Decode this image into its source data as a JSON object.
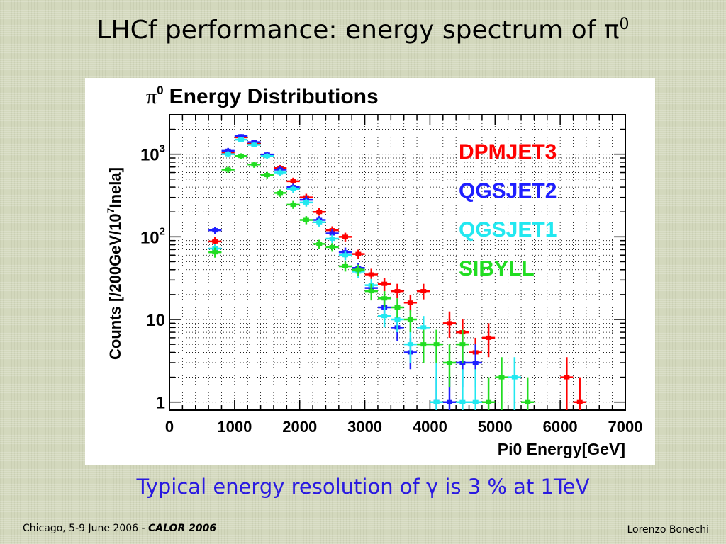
{
  "slide": {
    "title_main": "LHCf performance: energy spectrum of π",
    "title_sup": "0",
    "subtitle": "Typical energy resolution of γ is 3 % at 1TeV",
    "footer_left_text": "Chicago, 5-9 June 2006  -  ",
    "footer_left_conf": "CALOR 2006",
    "footer_right": "Lorenzo Bonechi"
  },
  "chart_data": {
    "type": "scatter",
    "title_symbol": "π",
    "title_sup": "0",
    "title": "Energy Distributions",
    "xlabel": "Pi0 Energy[GeV]",
    "ylabel_parts": [
      "Counts [/200GeV/10",
      "7",
      "Inela]"
    ],
    "xlim": [
      0,
      7000
    ],
    "ylim": [
      0.8,
      3000
    ],
    "yscale": "log",
    "grid": true,
    "legend_position": "top-right",
    "x_ticks": [
      "0",
      "1000",
      "2000",
      "3000",
      "4000",
      "5000",
      "6000",
      "7000"
    ],
    "y_ticks": [
      {
        "value": 1,
        "base": "1",
        "exp": ""
      },
      {
        "value": 10,
        "base": "10",
        "exp": ""
      },
      {
        "value": 100,
        "base": "10",
        "exp": "2"
      },
      {
        "value": 1000,
        "base": "10",
        "exp": "3"
      }
    ],
    "bin_half_width_gev": 100,
    "series": [
      {
        "name": "DPMJET3",
        "color": "#ff0000",
        "points": [
          {
            "x": 700,
            "y": 88,
            "lo": 76,
            "hi": 100
          },
          {
            "x": 900,
            "y": 1050,
            "lo": 960,
            "hi": 1140
          },
          {
            "x": 1100,
            "y": 1600,
            "lo": 1500,
            "hi": 1700
          },
          {
            "x": 1300,
            "y": 1350,
            "lo": 1260,
            "hi": 1440
          },
          {
            "x": 1500,
            "y": 980,
            "lo": 900,
            "hi": 1060
          },
          {
            "x": 1700,
            "y": 680,
            "lo": 620,
            "hi": 740
          },
          {
            "x": 1900,
            "y": 470,
            "lo": 420,
            "hi": 520
          },
          {
            "x": 2100,
            "y": 300,
            "lo": 268,
            "hi": 332
          },
          {
            "x": 2300,
            "y": 200,
            "lo": 180,
            "hi": 222
          },
          {
            "x": 2500,
            "y": 120,
            "lo": 106,
            "hi": 134
          },
          {
            "x": 2700,
            "y": 100,
            "lo": 88,
            "hi": 112
          },
          {
            "x": 2900,
            "y": 62,
            "lo": 54,
            "hi": 70
          },
          {
            "x": 3100,
            "y": 35,
            "lo": 29,
            "hi": 41
          },
          {
            "x": 3300,
            "y": 27,
            "lo": 22,
            "hi": 32
          },
          {
            "x": 3500,
            "y": 22,
            "lo": 18,
            "hi": 27
          },
          {
            "x": 3700,
            "y": 16,
            "lo": 12.5,
            "hi": 20
          },
          {
            "x": 3900,
            "y": 22,
            "lo": 17.5,
            "hi": 27
          },
          {
            "x": 4300,
            "y": 9,
            "lo": 6,
            "hi": 12.5
          },
          {
            "x": 4500,
            "y": 7,
            "lo": 4.5,
            "hi": 10
          },
          {
            "x": 4700,
            "y": 4,
            "lo": 2.5,
            "hi": 6
          },
          {
            "x": 4900,
            "y": 6,
            "lo": 3.5,
            "hi": 9
          },
          {
            "x": 6100,
            "y": 2,
            "lo": 0.8,
            "hi": 3.5
          },
          {
            "x": 6300,
            "y": 1,
            "lo": 0.8,
            "hi": 2
          }
        ]
      },
      {
        "name": "QGSJET2",
        "color": "#1e1eff",
        "points": [
          {
            "x": 700,
            "y": 120,
            "lo": 108,
            "hi": 132
          },
          {
            "x": 900,
            "y": 1100,
            "lo": 1010,
            "hi": 1190
          },
          {
            "x": 1100,
            "y": 1650,
            "lo": 1550,
            "hi": 1750
          },
          {
            "x": 1300,
            "y": 1400,
            "lo": 1310,
            "hi": 1490
          },
          {
            "x": 1500,
            "y": 990,
            "lo": 910,
            "hi": 1070
          },
          {
            "x": 1700,
            "y": 650,
            "lo": 590,
            "hi": 710
          },
          {
            "x": 1900,
            "y": 400,
            "lo": 360,
            "hi": 440
          },
          {
            "x": 2100,
            "y": 280,
            "lo": 250,
            "hi": 310
          },
          {
            "x": 2300,
            "y": 160,
            "lo": 142,
            "hi": 178
          },
          {
            "x": 2500,
            "y": 110,
            "lo": 97,
            "hi": 123
          },
          {
            "x": 2700,
            "y": 65,
            "lo": 56,
            "hi": 74
          },
          {
            "x": 2900,
            "y": 42,
            "lo": 36,
            "hi": 48
          },
          {
            "x": 3100,
            "y": 24,
            "lo": 19,
            "hi": 29
          },
          {
            "x": 3300,
            "y": 14,
            "lo": 10.5,
            "hi": 18
          },
          {
            "x": 3500,
            "y": 8,
            "lo": 5.5,
            "hi": 11
          },
          {
            "x": 3700,
            "y": 4,
            "lo": 2.5,
            "hi": 6
          },
          {
            "x": 4100,
            "y": 1,
            "lo": 0.8,
            "hi": 2
          },
          {
            "x": 4300,
            "y": 1,
            "lo": 0.8,
            "hi": 2
          },
          {
            "x": 4500,
            "y": 3,
            "lo": 1.5,
            "hi": 5
          },
          {
            "x": 4700,
            "y": 3,
            "lo": 1.5,
            "hi": 5
          }
        ]
      },
      {
        "name": "QGSJET1",
        "color": "#22e8f0",
        "points": [
          {
            "x": 700,
            "y": 72,
            "lo": 62,
            "hi": 82
          },
          {
            "x": 900,
            "y": 1000,
            "lo": 915,
            "hi": 1085
          },
          {
            "x": 1100,
            "y": 1500,
            "lo": 1405,
            "hi": 1595
          },
          {
            "x": 1300,
            "y": 1300,
            "lo": 1215,
            "hi": 1385
          },
          {
            "x": 1500,
            "y": 950,
            "lo": 875,
            "hi": 1025
          },
          {
            "x": 1700,
            "y": 600,
            "lo": 545,
            "hi": 655
          },
          {
            "x": 1900,
            "y": 380,
            "lo": 340,
            "hi": 420
          },
          {
            "x": 2100,
            "y": 260,
            "lo": 232,
            "hi": 288
          },
          {
            "x": 2300,
            "y": 150,
            "lo": 133,
            "hi": 167
          },
          {
            "x": 2500,
            "y": 95,
            "lo": 84,
            "hi": 106
          },
          {
            "x": 2700,
            "y": 60,
            "lo": 52,
            "hi": 68
          },
          {
            "x": 2900,
            "y": 38,
            "lo": 32,
            "hi": 44
          },
          {
            "x": 3100,
            "y": 26,
            "lo": 21,
            "hi": 31
          },
          {
            "x": 3300,
            "y": 11,
            "lo": 8,
            "hi": 14
          },
          {
            "x": 3500,
            "y": 10,
            "lo": 7,
            "hi": 13
          },
          {
            "x": 3700,
            "y": 5,
            "lo": 3,
            "hi": 7.5
          },
          {
            "x": 3900,
            "y": 8,
            "lo": 5.5,
            "hi": 11
          },
          {
            "x": 4100,
            "y": 1,
            "lo": 0.8,
            "hi": 5
          },
          {
            "x": 4500,
            "y": 1,
            "lo": 0.8,
            "hi": 2.5
          },
          {
            "x": 4700,
            "y": 1,
            "lo": 0.8,
            "hi": 2.5
          },
          {
            "x": 5300,
            "y": 2,
            "lo": 0.8,
            "hi": 3.5
          }
        ]
      },
      {
        "name": "SIBYLL",
        "color": "#22dd22",
        "points": [
          {
            "x": 700,
            "y": 65,
            "lo": 56,
            "hi": 74
          },
          {
            "x": 900,
            "y": 650,
            "lo": 595,
            "hi": 705
          },
          {
            "x": 1100,
            "y": 950,
            "lo": 875,
            "hi": 1025
          },
          {
            "x": 1300,
            "y": 750,
            "lo": 685,
            "hi": 815
          },
          {
            "x": 1500,
            "y": 560,
            "lo": 510,
            "hi": 610
          },
          {
            "x": 1700,
            "y": 340,
            "lo": 305,
            "hi": 375
          },
          {
            "x": 1900,
            "y": 245,
            "lo": 218,
            "hi": 272
          },
          {
            "x": 2100,
            "y": 160,
            "lo": 142,
            "hi": 178
          },
          {
            "x": 2300,
            "y": 82,
            "lo": 72,
            "hi": 92
          },
          {
            "x": 2500,
            "y": 75,
            "lo": 66,
            "hi": 84
          },
          {
            "x": 2700,
            "y": 44,
            "lo": 38,
            "hi": 50
          },
          {
            "x": 2900,
            "y": 40,
            "lo": 34,
            "hi": 46
          },
          {
            "x": 3100,
            "y": 22,
            "lo": 17,
            "hi": 27
          },
          {
            "x": 3300,
            "y": 18,
            "lo": 14,
            "hi": 22
          },
          {
            "x": 3500,
            "y": 14,
            "lo": 10.5,
            "hi": 18
          },
          {
            "x": 3700,
            "y": 10,
            "lo": 7,
            "hi": 13
          },
          {
            "x": 3900,
            "y": 5,
            "lo": 3,
            "hi": 7.5
          },
          {
            "x": 4100,
            "y": 5,
            "lo": 3,
            "hi": 7.5
          },
          {
            "x": 4300,
            "y": 3,
            "lo": 1.5,
            "hi": 5
          },
          {
            "x": 4500,
            "y": 5,
            "lo": 3,
            "hi": 7.5
          },
          {
            "x": 4900,
            "y": 1,
            "lo": 0.8,
            "hi": 2
          },
          {
            "x": 5100,
            "y": 2,
            "lo": 0.8,
            "hi": 3.5
          },
          {
            "x": 5500,
            "y": 1,
            "lo": 0.8,
            "hi": 2
          }
        ]
      }
    ]
  }
}
